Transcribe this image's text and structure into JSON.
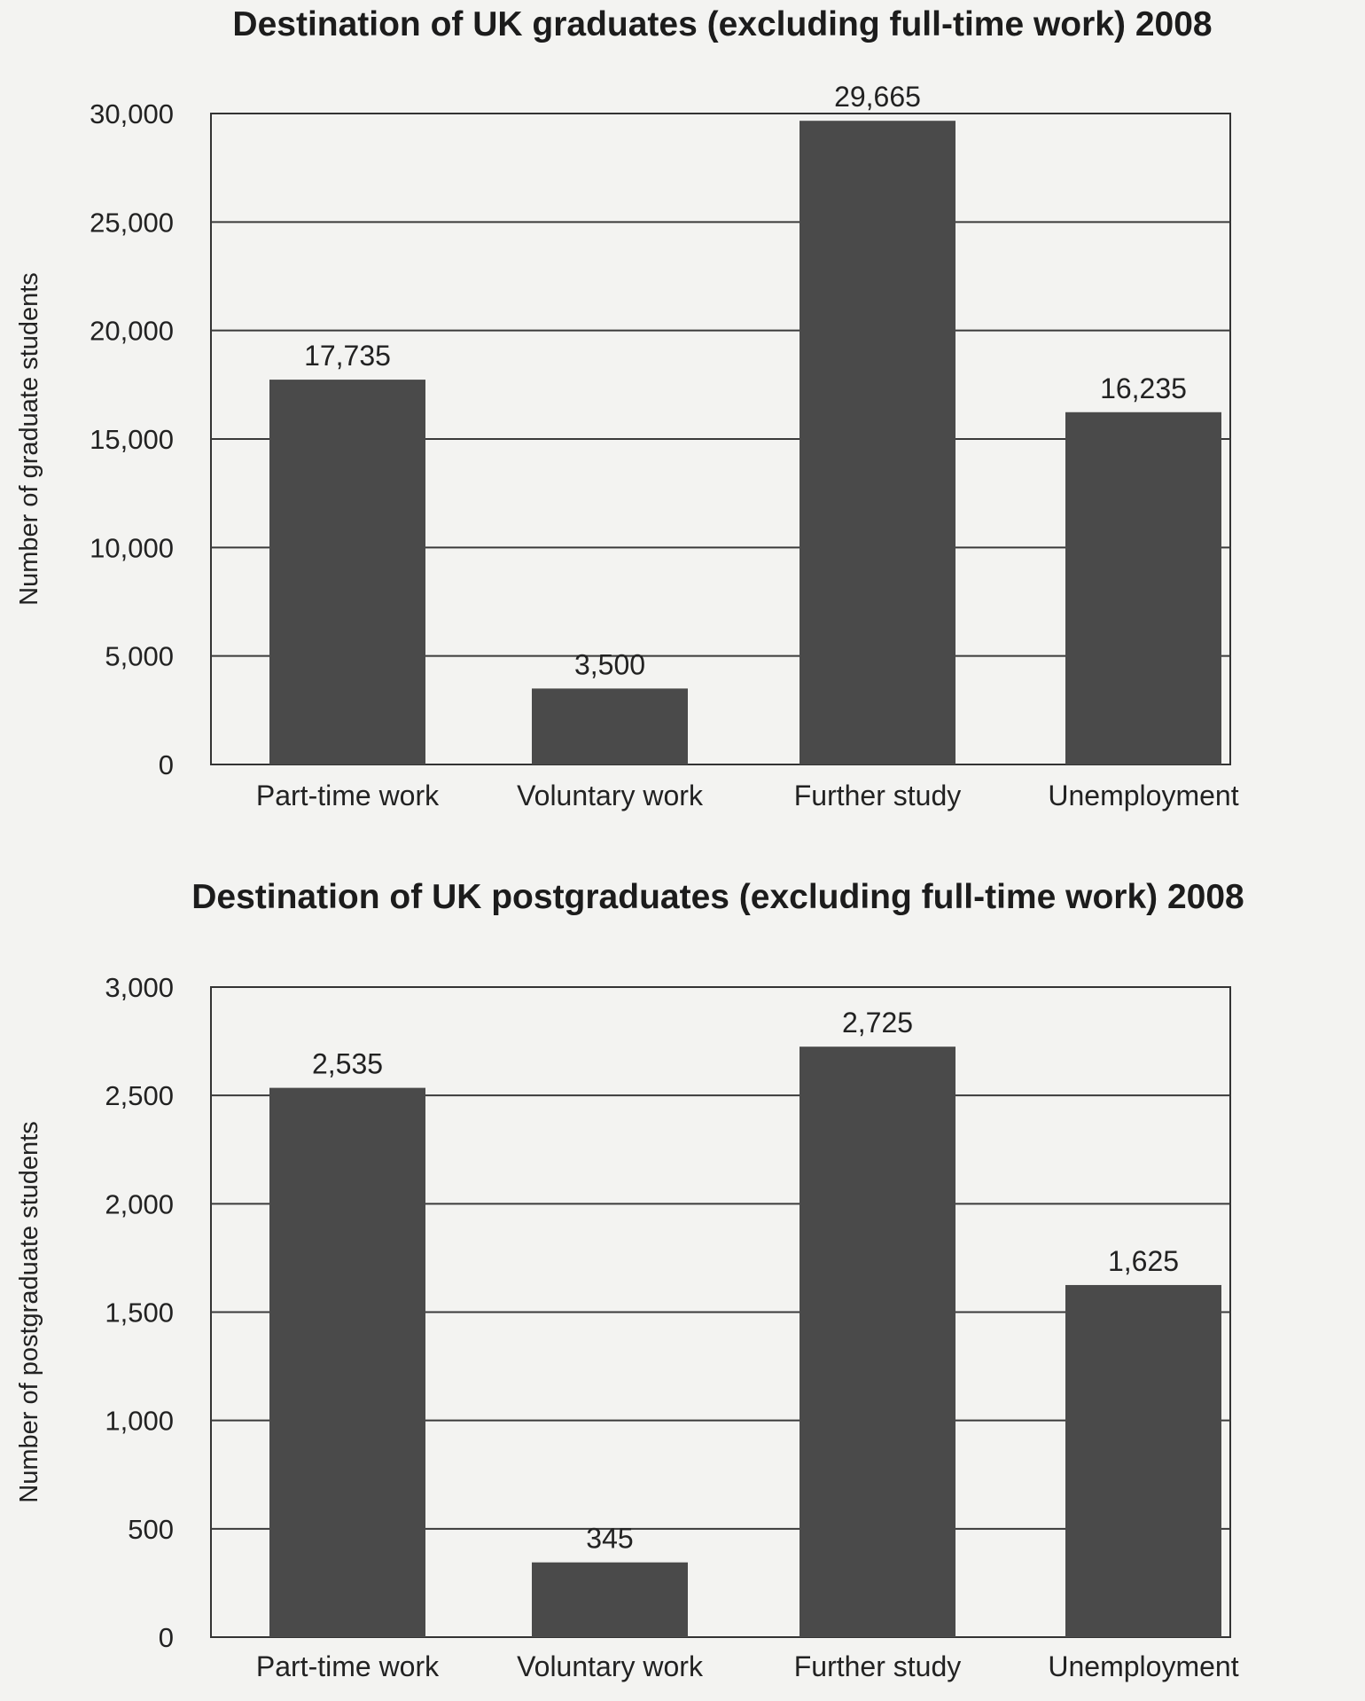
{
  "chart_data": [
    {
      "type": "bar",
      "title": "Destination of UK graduates (excluding full-time work) 2008",
      "ylabel": "Number of graduate students",
      "xlabel": "",
      "categories": [
        "Part-time work",
        "Voluntary work",
        "Further study",
        "Unemployment"
      ],
      "values": [
        17735,
        3500,
        29665,
        16235
      ],
      "value_labels": [
        "17,735",
        "3,500",
        "29,665",
        "16,235"
      ],
      "ylim": [
        0,
        30000
      ],
      "yticks": [
        0,
        5000,
        10000,
        15000,
        20000,
        25000,
        30000
      ],
      "ytick_labels": [
        "0",
        "5,000",
        "10,000",
        "15,000",
        "20,000",
        "25,000",
        "30,000"
      ],
      "grid": true,
      "legend": "none",
      "bar_color": "#4a4a4a"
    },
    {
      "type": "bar",
      "title": "Destination of UK postgraduates (excluding full-time work) 2008",
      "ylabel": "Number of postgraduate students",
      "xlabel": "",
      "categories": [
        "Part-time work",
        "Voluntary work",
        "Further study",
        "Unemployment"
      ],
      "values": [
        2535,
        345,
        2725,
        1625
      ],
      "value_labels": [
        "2,535",
        "345",
        "2,725",
        "1,625"
      ],
      "ylim": [
        0,
        3000
      ],
      "yticks": [
        0,
        500,
        1000,
        1500,
        2000,
        2500,
        3000
      ],
      "ytick_labels": [
        "0",
        "500",
        "1,000",
        "1,500",
        "2,000",
        "2,500",
        "3,000"
      ],
      "grid": true,
      "legend": "none",
      "bar_color": "#4a4a4a"
    }
  ]
}
